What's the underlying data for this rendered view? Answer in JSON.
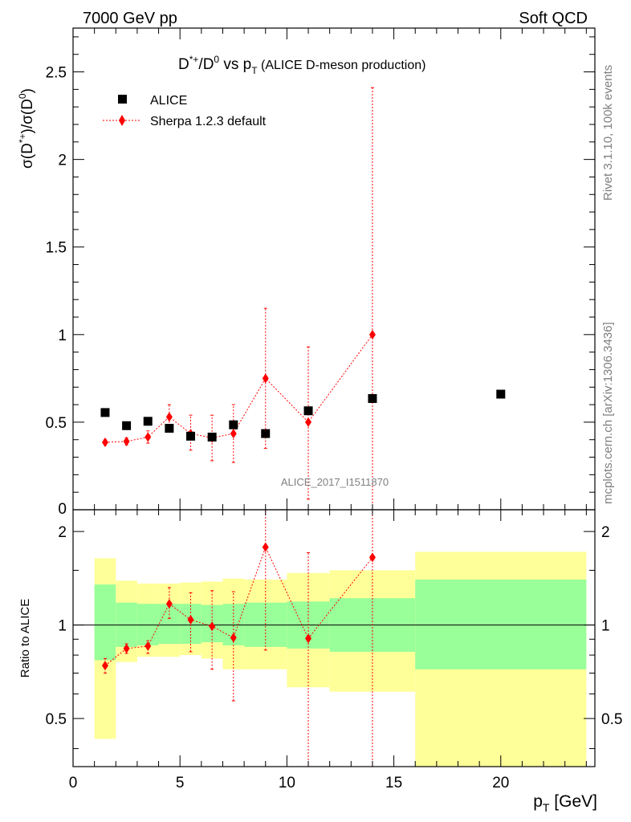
{
  "header": {
    "energy_label": "7000 GeV pp",
    "process_label": "Soft QCD",
    "side_rivet": "Rivet 3.1.10,  100k events",
    "side_mcplots": "mcplots.cern.ch [arXiv:1306.3436]",
    "analysis_id": "ALICE_2017_I1511870"
  },
  "chart_data": [
    {
      "type": "scatter",
      "title_main": "D*+/D0 vs pT",
      "title_sub": "(ALICE D-meson production)",
      "ylabel": "σ(D*+)/σ(D0)",
      "xlim": [
        0,
        24.4
      ],
      "ylim": [
        0,
        2.75
      ],
      "y_ticks": [
        "0.5",
        "1",
        "1.5",
        "2",
        "2.5"
      ],
      "legend_position": "top-left",
      "series": [
        {
          "name": "ALICE",
          "marker": "square",
          "color": "#000000",
          "x": [
            1.5,
            2.5,
            3.5,
            4.5,
            5.5,
            6.5,
            7.5,
            9,
            11,
            14,
            20
          ],
          "y": [
            0.555,
            0.48,
            0.505,
            0.465,
            0.42,
            0.415,
            0.485,
            0.435,
            0.565,
            0.635,
            0.66
          ]
        },
        {
          "name": "Sherpa 1.2.3 default",
          "marker": "diamond",
          "color": "#ff0000",
          "x": [
            1.5,
            2.5,
            3.5,
            4.5,
            5.5,
            6.5,
            7.5,
            9,
            11,
            14
          ],
          "y": [
            0.385,
            0.39,
            0.415,
            0.53,
            0.435,
            0.41,
            0.435,
            0.75,
            0.5,
            1.0
          ],
          "err_low": [
            0.37,
            0.37,
            0.38,
            0.46,
            0.34,
            0.28,
            0.27,
            0.35,
            0.06,
            0.0
          ],
          "err_high": [
            0.4,
            0.41,
            0.45,
            0.6,
            0.54,
            0.54,
            0.6,
            1.15,
            0.93,
            2.41
          ]
        }
      ]
    },
    {
      "type": "scatter",
      "ylabel": "Ratio to ALICE",
      "xlabel": "pT [GeV]",
      "xlim": [
        0,
        24.4
      ],
      "ylim": [
        0.35,
        2.35
      ],
      "log_y": true,
      "x_ticks": [
        "0",
        "5",
        "10",
        "15",
        "20"
      ],
      "y_ticks": [
        "0.5",
        "1",
        "2"
      ],
      "reference_line": 1,
      "bands": {
        "edges": [
          1,
          2,
          3,
          4,
          5,
          6,
          7,
          8,
          10,
          12,
          16,
          24
        ],
        "green_low": [
          0.77,
          0.85,
          0.86,
          0.87,
          0.87,
          0.88,
          0.86,
          0.85,
          0.84,
          0.82,
          0.72
        ],
        "green_high": [
          1.35,
          1.18,
          1.17,
          1.17,
          1.17,
          1.16,
          1.17,
          1.18,
          1.19,
          1.22,
          1.4
        ],
        "yellow_low": [
          0.43,
          0.76,
          0.79,
          0.79,
          0.8,
          0.78,
          0.72,
          0.72,
          0.63,
          0.61,
          0.35
        ],
        "yellow_high": [
          1.64,
          1.39,
          1.36,
          1.36,
          1.37,
          1.38,
          1.41,
          1.4,
          1.47,
          1.5,
          1.72
        ],
        "green_color": "#99ff99",
        "yellow_color": "#ffff99"
      },
      "series": [
        {
          "name": "Sherpa 1.2.3 default",
          "marker": "diamond",
          "color": "#ff0000",
          "x": [
            1.5,
            2.5,
            3.5,
            4.5,
            5.5,
            6.5,
            7.5,
            9,
            11,
            14
          ],
          "y": [
            0.74,
            0.84,
            0.855,
            1.17,
            1.04,
            0.99,
            0.91,
            1.78,
            0.905,
            1.65
          ],
          "err_low": [
            0.7,
            0.81,
            0.81,
            1.05,
            0.82,
            0.72,
            0.57,
            0.83,
            0.1,
            0.1
          ],
          "err_high": [
            0.78,
            0.87,
            0.89,
            1.32,
            1.27,
            1.29,
            1.28,
            2.6,
            1.71,
            2.6
          ]
        }
      ]
    }
  ]
}
